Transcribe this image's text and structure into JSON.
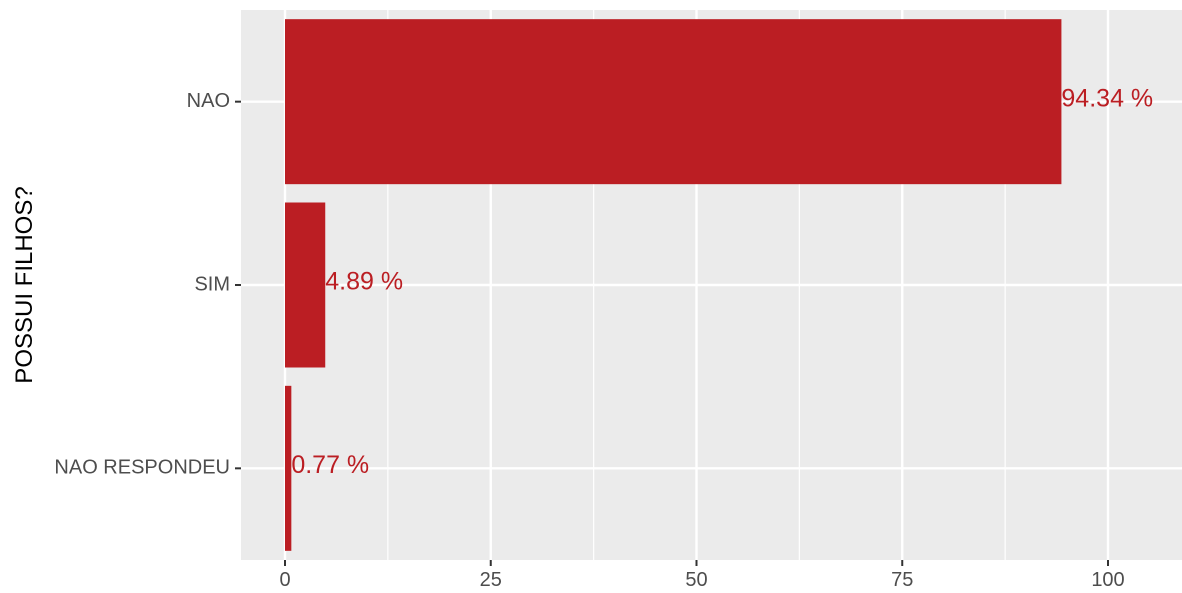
{
  "chart_data": {
    "type": "bar",
    "orientation": "horizontal",
    "ylabel": "POSSUI FILHOS?",
    "xlabel": "",
    "categories": [
      "NAO",
      "SIM",
      "NAO RESPONDEU"
    ],
    "values": [
      94.34,
      4.89,
      0.77
    ],
    "data_labels": [
      "94.34 %",
      "4.89 %",
      "0.77 %"
    ],
    "xlim": [
      0,
      108
    ],
    "x_ticks": [
      0,
      25,
      50,
      75,
      100
    ],
    "x_tick_labels": [
      "0",
      "25",
      "50",
      "75",
      "100"
    ],
    "grid": true,
    "legend": "none",
    "colors": {
      "bar": "#BB1E23",
      "label": "#BB1E23",
      "panel": "#EBEBEB",
      "grid": "#FFFFFF"
    }
  }
}
